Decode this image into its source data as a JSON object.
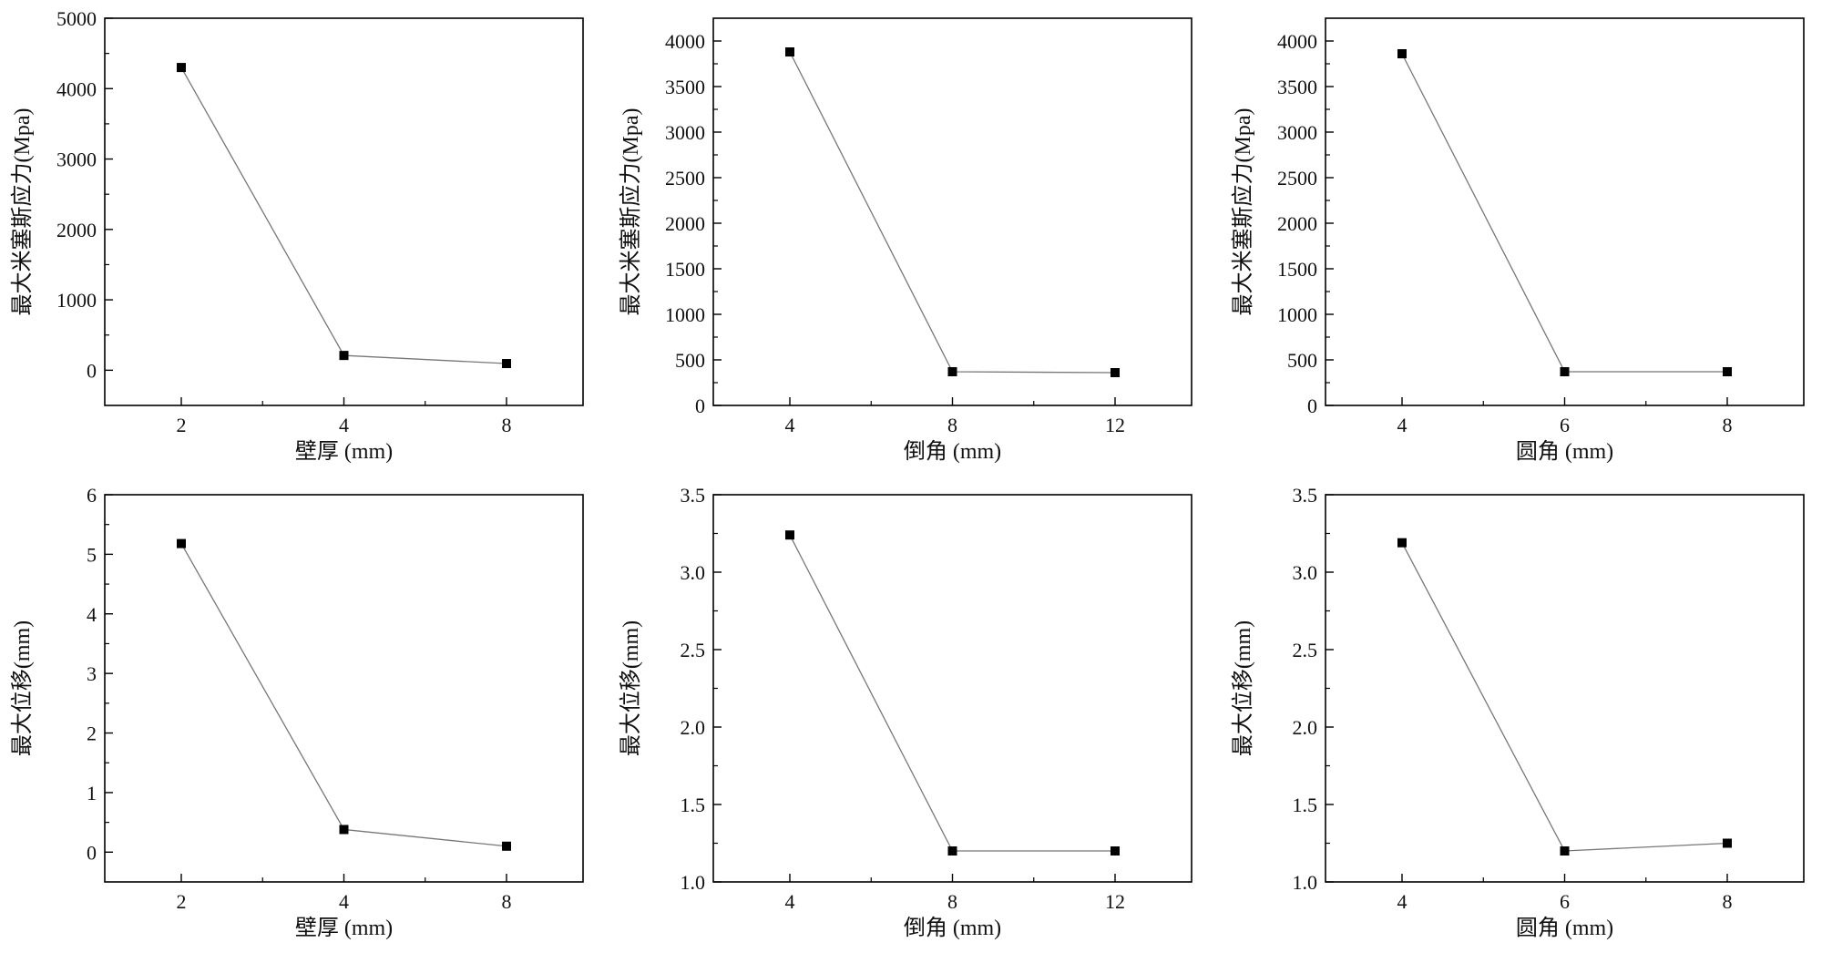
{
  "chart_data": [
    {
      "type": "line",
      "xlabel": "壁厚 (mm)",
      "ylabel": "最大米塞斯应力(Mpa)",
      "categories": [
        "2",
        "4",
        "8"
      ],
      "values": [
        4300,
        210,
        95
      ],
      "yticks": [
        0,
        1000,
        2000,
        3000,
        4000,
        5000
      ],
      "ylim": [
        -500,
        5000
      ],
      "grid": false,
      "marker": "square",
      "line_color": "#777777",
      "marker_color": "#000000"
    },
    {
      "type": "line",
      "xlabel": "倒角 (mm)",
      "ylabel": "最大米塞斯应力(Mpa)",
      "categories": [
        "4",
        "8",
        "12"
      ],
      "values": [
        3880,
        370,
        360
      ],
      "yticks": [
        0,
        500,
        1000,
        1500,
        2000,
        2500,
        3000,
        3500,
        4000
      ],
      "ylim": [
        0,
        4250
      ],
      "grid": false,
      "marker": "square",
      "line_color": "#777777",
      "marker_color": "#000000"
    },
    {
      "type": "line",
      "xlabel": "圆角 (mm)",
      "ylabel": "最大米塞斯应力(Mpa)",
      "categories": [
        "4",
        "6",
        "8"
      ],
      "values": [
        3860,
        370,
        370
      ],
      "yticks": [
        0,
        500,
        1000,
        1500,
        2000,
        2500,
        3000,
        3500,
        4000
      ],
      "ylim": [
        0,
        4250
      ],
      "grid": false,
      "marker": "square",
      "line_color": "#777777",
      "marker_color": "#000000"
    },
    {
      "type": "line",
      "xlabel": "壁厚 (mm)",
      "ylabel": "最大位移(mm)",
      "categories": [
        "2",
        "4",
        "8"
      ],
      "values": [
        5.18,
        0.38,
        0.1
      ],
      "yticks": [
        0,
        1,
        2,
        3,
        4,
        5,
        6
      ],
      "ylim": [
        -0.5,
        6
      ],
      "grid": false,
      "marker": "square",
      "line_color": "#777777",
      "marker_color": "#000000"
    },
    {
      "type": "line",
      "xlabel": "倒角 (mm)",
      "ylabel": "最大位移(mm)",
      "categories": [
        "4",
        "8",
        "12"
      ],
      "values": [
        3.24,
        1.2,
        1.2
      ],
      "yticks": [
        "1.0",
        "1.5",
        "2.0",
        "2.5",
        "3.0",
        "3.5"
      ],
      "ylim": [
        1.0,
        3.5
      ],
      "grid": false,
      "marker": "square",
      "line_color": "#777777",
      "marker_color": "#000000"
    },
    {
      "type": "line",
      "xlabel": "圆角 (mm)",
      "ylabel": "最大位移(mm)",
      "categories": [
        "4",
        "6",
        "8"
      ],
      "values": [
        3.19,
        1.2,
        1.25
      ],
      "yticks": [
        "1.0",
        "1.5",
        "2.0",
        "2.5",
        "3.0",
        "3.5"
      ],
      "ylim": [
        1.0,
        3.5
      ],
      "grid": false,
      "marker": "square",
      "line_color": "#777777",
      "marker_color": "#000000"
    }
  ]
}
